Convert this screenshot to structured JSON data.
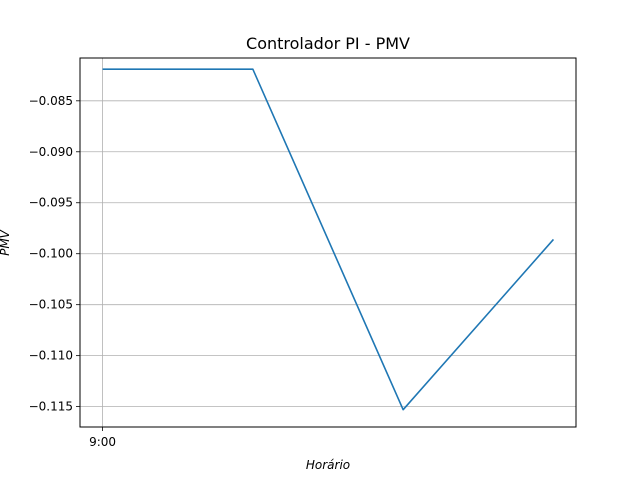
{
  "chart_data": {
    "type": "line",
    "title": "Controlador PI - PMV",
    "xlabel": "Horário",
    "ylabel": "PMV",
    "x_ticks": [
      {
        "x": 0,
        "label": "9:00"
      }
    ],
    "y_ticks": [
      -0.085,
      -0.09,
      -0.095,
      -0.1,
      -0.105,
      -0.11,
      -0.115
    ],
    "y_tick_labels": [
      "−0.085",
      "−0.090",
      "−0.095",
      "−0.100",
      "−0.105",
      "−0.110",
      "−0.115"
    ],
    "xlim": [
      -0.15,
      3.15
    ],
    "ylim": [
      -0.117,
      -0.0808
    ],
    "grid": true,
    "series": [
      {
        "color": "#1f77b4",
        "x": [
          0,
          1,
          2,
          3
        ],
        "y": [
          -0.0819,
          -0.0819,
          -0.1153,
          -0.0986
        ]
      }
    ]
  }
}
